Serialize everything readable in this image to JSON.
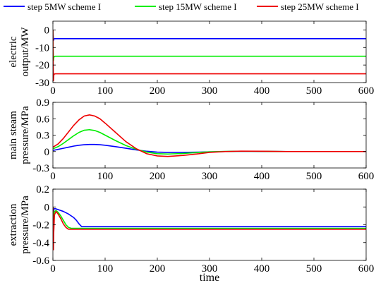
{
  "chart_data": {
    "type": "line",
    "legend_placement": "top",
    "grid": false,
    "xlabel": "time",
    "legend": [
      {
        "name": "step 5MW scheme I",
        "color": "#0000ff"
      },
      {
        "name": "step 15MW scheme I",
        "color": "#00ee00"
      },
      {
        "name": "step 25MW scheme I",
        "color": "#ee0000"
      }
    ],
    "panels": [
      {
        "id": "electric-output",
        "ylabel": [
          "electric",
          "output/MW"
        ],
        "xlim": [
          0,
          600
        ],
        "ylim": [
          -30,
          5
        ],
        "yticks": [
          0,
          -10,
          -20,
          -30
        ],
        "ytick_labels": [
          "0",
          "-10",
          "-20",
          "-30"
        ],
        "xticks": [
          0,
          100,
          200,
          300,
          400,
          500,
          600
        ],
        "series": [
          {
            "name": "step 5MW scheme I",
            "color": "#0000ff",
            "x": [
              0,
              0.3,
              1,
              1.5,
              2,
              3,
              5,
              10,
              600
            ],
            "y": [
              0,
              -2,
              -6,
              -5.5,
              -5.2,
              -5.0,
              -5.0,
              -5.0,
              -5.0
            ]
          },
          {
            "name": "step 15MW scheme I",
            "color": "#00ee00",
            "x": [
              0,
              0.3,
              1,
              1.5,
              2,
              3,
              5,
              10,
              600
            ],
            "y": [
              0,
              -10,
              -17.5,
              -16,
              -15.5,
              -15.1,
              -15.0,
              -15.0,
              -15.0
            ]
          },
          {
            "name": "step 25MW scheme I",
            "color": "#ee0000",
            "x": [
              0,
              0.3,
              1,
              1.5,
              2,
              3,
              5,
              10,
              600
            ],
            "y": [
              0,
              -15,
              -29,
              -26.5,
              -25.5,
              -25.1,
              -25.0,
              -25.0,
              -25.0
            ]
          }
        ]
      },
      {
        "id": "main-steam-pressure",
        "ylabel": [
          "main steam",
          "pressure/MPa"
        ],
        "xlim": [
          0,
          600
        ],
        "ylim": [
          -0.3,
          0.9
        ],
        "yticks": [
          -0.3,
          0,
          0.3,
          0.6,
          0.9
        ],
        "ytick_labels": [
          "-0.3",
          "0",
          "0.3",
          "0.6",
          "0.9"
        ],
        "xticks": [
          0,
          100,
          200,
          300,
          400,
          500,
          600
        ],
        "series": [
          {
            "name": "step 5MW scheme I",
            "color": "#0000ff",
            "x": [
              0,
              10,
              20,
              30,
              40,
              50,
              60,
              70,
              80,
              90,
              100,
              120,
              140,
              160,
              180,
              200,
              220,
              250,
              280,
              300,
              330,
              360,
              400,
              450,
              500,
              550,
              600
            ],
            "y": [
              0.02,
              0.04,
              0.06,
              0.08,
              0.1,
              0.115,
              0.125,
              0.13,
              0.13,
              0.125,
              0.115,
              0.09,
              0.06,
              0.03,
              0.005,
              -0.01,
              -0.015,
              -0.015,
              -0.01,
              -0.005,
              0.0,
              0.005,
              0.003,
              0.0,
              0.0,
              0.0,
              0.0
            ]
          },
          {
            "name": "step 15MW scheme I",
            "color": "#00ee00",
            "x": [
              0,
              10,
              20,
              30,
              40,
              50,
              60,
              70,
              80,
              90,
              100,
              120,
              140,
              160,
              180,
              200,
              220,
              250,
              280,
              300,
              330,
              360,
              400,
              450,
              500,
              550,
              600
            ],
            "y": [
              0.05,
              0.09,
              0.15,
              0.22,
              0.29,
              0.35,
              0.39,
              0.4,
              0.385,
              0.35,
              0.3,
              0.2,
              0.11,
              0.04,
              -0.01,
              -0.04,
              -0.045,
              -0.035,
              -0.015,
              -0.005,
              0.003,
              0.006,
              0.004,
              0.0,
              0.0,
              0.0,
              0.0
            ]
          },
          {
            "name": "step 25MW scheme I",
            "color": "#ee0000",
            "x": [
              0,
              10,
              20,
              30,
              40,
              50,
              60,
              70,
              80,
              90,
              100,
              120,
              140,
              160,
              180,
              200,
              220,
              250,
              280,
              300,
              330,
              360,
              400,
              450,
              500,
              550,
              600
            ],
            "y": [
              0.08,
              0.14,
              0.24,
              0.36,
              0.48,
              0.58,
              0.65,
              0.67,
              0.65,
              0.6,
              0.52,
              0.35,
              0.18,
              0.05,
              -0.04,
              -0.08,
              -0.09,
              -0.07,
              -0.04,
              -0.015,
              0.0,
              0.008,
              0.005,
              0.0,
              0.0,
              0.0,
              0.0
            ]
          }
        ]
      },
      {
        "id": "extraction-pressure",
        "ylabel": [
          "extraction",
          "pressure/MPa"
        ],
        "xlim": [
          0,
          600
        ],
        "ylim": [
          -0.6,
          0.2
        ],
        "yticks": [
          0.2,
          0,
          -0.2,
          -0.4,
          -0.6
        ],
        "ytick_labels": [
          "0.2",
          "0",
          "-0.2",
          "-0.4",
          "-0.6"
        ],
        "xticks": [
          0,
          100,
          200,
          300,
          400,
          500,
          600
        ],
        "series": [
          {
            "name": "step 5MW scheme I",
            "color": "#0000ff",
            "x": [
              0,
              1,
              2,
              5,
              10,
              20,
              30,
              40,
              45,
              50,
              55,
              60,
              600
            ],
            "y": [
              0,
              -0.06,
              -0.02,
              -0.02,
              -0.03,
              -0.05,
              -0.08,
              -0.12,
              -0.15,
              -0.19,
              -0.22,
              -0.22,
              -0.22
            ]
          },
          {
            "name": "step 15MW scheme I",
            "color": "#00ee00",
            "x": [
              0,
              1,
              1.5,
              3,
              6,
              10,
              15,
              20,
              25,
              30,
              35,
              40,
              600
            ],
            "y": [
              0,
              -0.15,
              -0.1,
              -0.05,
              -0.04,
              -0.06,
              -0.1,
              -0.15,
              -0.2,
              -0.23,
              -0.24,
              -0.24,
              -0.24
            ]
          },
          {
            "name": "step 25MW scheme I",
            "color": "#ee0000",
            "x": [
              0,
              1,
              1.5,
              3,
              6,
              10,
              15,
              20,
              25,
              30,
              600
            ],
            "y": [
              0,
              -0.48,
              -0.3,
              -0.09,
              -0.05,
              -0.08,
              -0.13,
              -0.19,
              -0.23,
              -0.25,
              -0.25
            ]
          }
        ]
      }
    ]
  }
}
